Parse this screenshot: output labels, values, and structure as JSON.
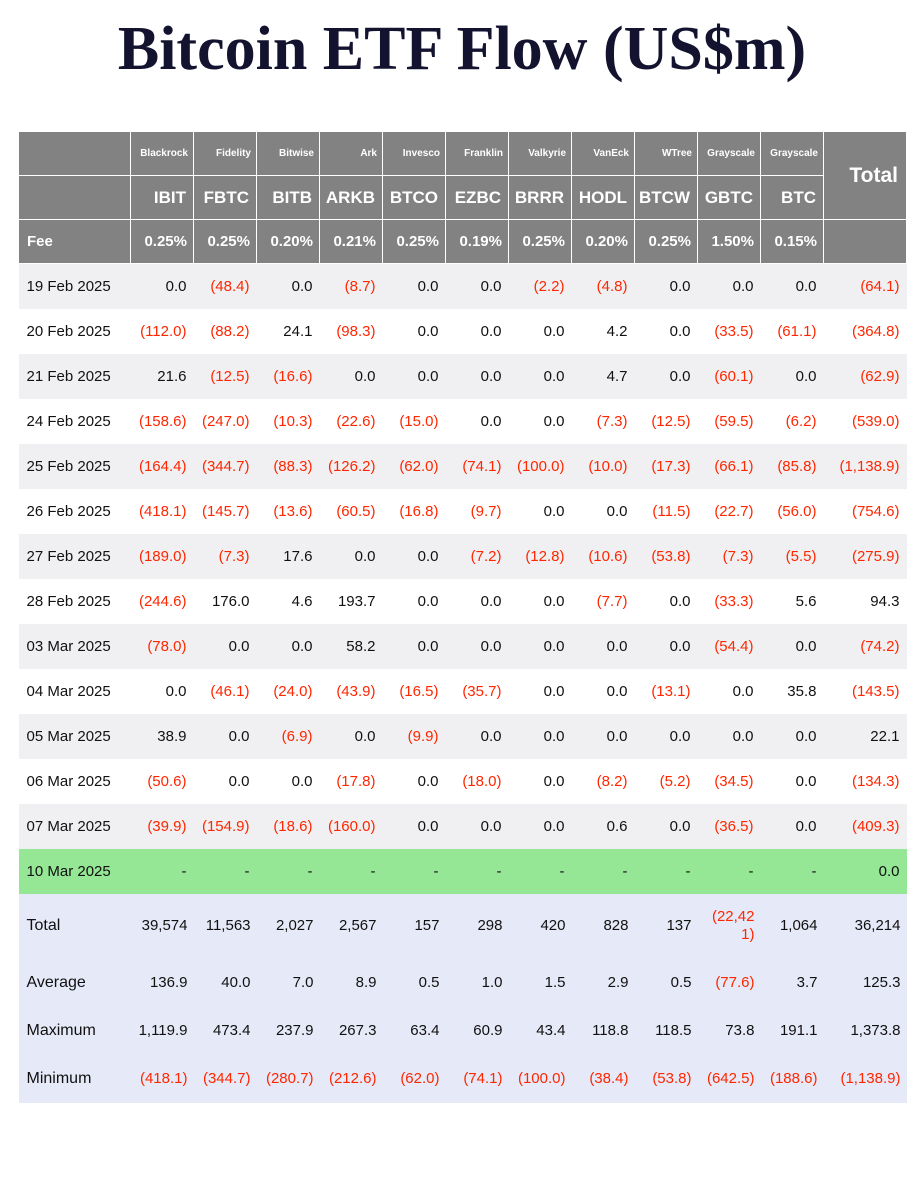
{
  "title": "Bitcoin ETF Flow (US$m)",
  "colors": {
    "header_bg": "#828282",
    "negative": "#ff2600",
    "highlight_row_bg": "#95e695",
    "summary_bg": "#e6e9f7",
    "stripe_bg": "#f0f0f2"
  },
  "table": {
    "total_label": "Total",
    "fee_label": "Fee",
    "columns": [
      {
        "issuer": "Blackrock",
        "ticker": "IBIT",
        "fee": "0.25%"
      },
      {
        "issuer": "Fidelity",
        "ticker": "FBTC",
        "fee": "0.25%"
      },
      {
        "issuer": "Bitwise",
        "ticker": "BITB",
        "fee": "0.20%"
      },
      {
        "issuer": "Ark",
        "ticker": "ARKB",
        "fee": "0.21%"
      },
      {
        "issuer": "Invesco",
        "ticker": "BTCO",
        "fee": "0.25%"
      },
      {
        "issuer": "Franklin",
        "ticker": "EZBC",
        "fee": "0.19%"
      },
      {
        "issuer": "Valkyrie",
        "ticker": "BRRR",
        "fee": "0.25%"
      },
      {
        "issuer": "VanEck",
        "ticker": "HODL",
        "fee": "0.20%"
      },
      {
        "issuer": "WTree",
        "ticker": "BTCW",
        "fee": "0.25%"
      },
      {
        "issuer": "Grayscale",
        "ticker": "GBTC",
        "fee": "1.50%"
      },
      {
        "issuer": "Grayscale",
        "ticker": "BTC",
        "fee": "0.15%"
      }
    ],
    "rows": [
      {
        "date": "19 Feb 2025",
        "values": [
          "0.0",
          "(48.4)",
          "0.0",
          "(8.7)",
          "0.0",
          "0.0",
          "(2.2)",
          "(4.8)",
          "0.0",
          "0.0",
          "0.0"
        ],
        "total": "(64.1)"
      },
      {
        "date": "20 Feb 2025",
        "values": [
          "(112.0)",
          "(88.2)",
          "24.1",
          "(98.3)",
          "0.0",
          "0.0",
          "0.0",
          "4.2",
          "0.0",
          "(33.5)",
          "(61.1)"
        ],
        "total": "(364.8)"
      },
      {
        "date": "21 Feb 2025",
        "values": [
          "21.6",
          "(12.5)",
          "(16.6)",
          "0.0",
          "0.0",
          "0.0",
          "0.0",
          "4.7",
          "0.0",
          "(60.1)",
          "0.0"
        ],
        "total": "(62.9)"
      },
      {
        "date": "24 Feb 2025",
        "values": [
          "(158.6)",
          "(247.0)",
          "(10.3)",
          "(22.6)",
          "(15.0)",
          "0.0",
          "0.0",
          "(7.3)",
          "(12.5)",
          "(59.5)",
          "(6.2)"
        ],
        "total": "(539.0)"
      },
      {
        "date": "25 Feb 2025",
        "values": [
          "(164.4)",
          "(344.7)",
          "(88.3)",
          "(126.2)",
          "(62.0)",
          "(74.1)",
          "(100.0)",
          "(10.0)",
          "(17.3)",
          "(66.1)",
          "(85.8)"
        ],
        "total": "(1,138.9)"
      },
      {
        "date": "26 Feb 2025",
        "values": [
          "(418.1)",
          "(145.7)",
          "(13.6)",
          "(60.5)",
          "(16.8)",
          "(9.7)",
          "0.0",
          "0.0",
          "(11.5)",
          "(22.7)",
          "(56.0)"
        ],
        "total": "(754.6)"
      },
      {
        "date": "27 Feb 2025",
        "values": [
          "(189.0)",
          "(7.3)",
          "17.6",
          "0.0",
          "0.0",
          "(7.2)",
          "(12.8)",
          "(10.6)",
          "(53.8)",
          "(7.3)",
          "(5.5)"
        ],
        "total": "(275.9)"
      },
      {
        "date": "28 Feb 2025",
        "values": [
          "(244.6)",
          "176.0",
          "4.6",
          "193.7",
          "0.0",
          "0.0",
          "0.0",
          "(7.7)",
          "0.0",
          "(33.3)",
          "5.6"
        ],
        "total": "94.3"
      },
      {
        "date": "03 Mar 2025",
        "values": [
          "(78.0)",
          "0.0",
          "0.0",
          "58.2",
          "0.0",
          "0.0",
          "0.0",
          "0.0",
          "0.0",
          "(54.4)",
          "0.0"
        ],
        "total": "(74.2)"
      },
      {
        "date": "04 Mar 2025",
        "values": [
          "0.0",
          "(46.1)",
          "(24.0)",
          "(43.9)",
          "(16.5)",
          "(35.7)",
          "0.0",
          "0.0",
          "(13.1)",
          "0.0",
          "35.8"
        ],
        "total": "(143.5)"
      },
      {
        "date": "05 Mar 2025",
        "values": [
          "38.9",
          "0.0",
          "(6.9)",
          "0.0",
          "(9.9)",
          "0.0",
          "0.0",
          "0.0",
          "0.0",
          "0.0",
          "0.0"
        ],
        "total": "22.1"
      },
      {
        "date": "06 Mar 2025",
        "values": [
          "(50.6)",
          "0.0",
          "0.0",
          "(17.8)",
          "0.0",
          "(18.0)",
          "0.0",
          "(8.2)",
          "(5.2)",
          "(34.5)",
          "0.0"
        ],
        "total": "(134.3)"
      },
      {
        "date": "07 Mar 2025",
        "values": [
          "(39.9)",
          "(154.9)",
          "(18.6)",
          "(160.0)",
          "0.0",
          "0.0",
          "0.0",
          "0.6",
          "0.0",
          "(36.5)",
          "0.0"
        ],
        "total": "(409.3)"
      }
    ],
    "highlight_row": {
      "date": "10 Mar 2025",
      "values": [
        "-",
        "-",
        "-",
        "-",
        "-",
        "-",
        "-",
        "-",
        "-",
        "-",
        "-"
      ],
      "total": "0.0"
    },
    "summary_rows": [
      {
        "label": "Total",
        "values": [
          "39,574",
          "11,563",
          "2,027",
          "2,567",
          "157",
          "298",
          "420",
          "828",
          "137",
          "(22,421)",
          "1,064"
        ],
        "total": "36,214"
      },
      {
        "label": "Average",
        "values": [
          "136.9",
          "40.0",
          "7.0",
          "8.9",
          "0.5",
          "1.0",
          "1.5",
          "2.9",
          "0.5",
          "(77.6)",
          "3.7"
        ],
        "total": "125.3"
      },
      {
        "label": "Maximum",
        "values": [
          "1,119.9",
          "473.4",
          "237.9",
          "267.3",
          "63.4",
          "60.9",
          "43.4",
          "118.8",
          "118.5",
          "73.8",
          "191.1"
        ],
        "total": "1,373.8"
      },
      {
        "label": "Minimum",
        "values": [
          "(418.1)",
          "(344.7)",
          "(280.7)",
          "(212.6)",
          "(62.0)",
          "(74.1)",
          "(100.0)",
          "(38.4)",
          "(53.8)",
          "(642.5)",
          "(188.6)"
        ],
        "total": "(1,138.9)"
      }
    ]
  }
}
